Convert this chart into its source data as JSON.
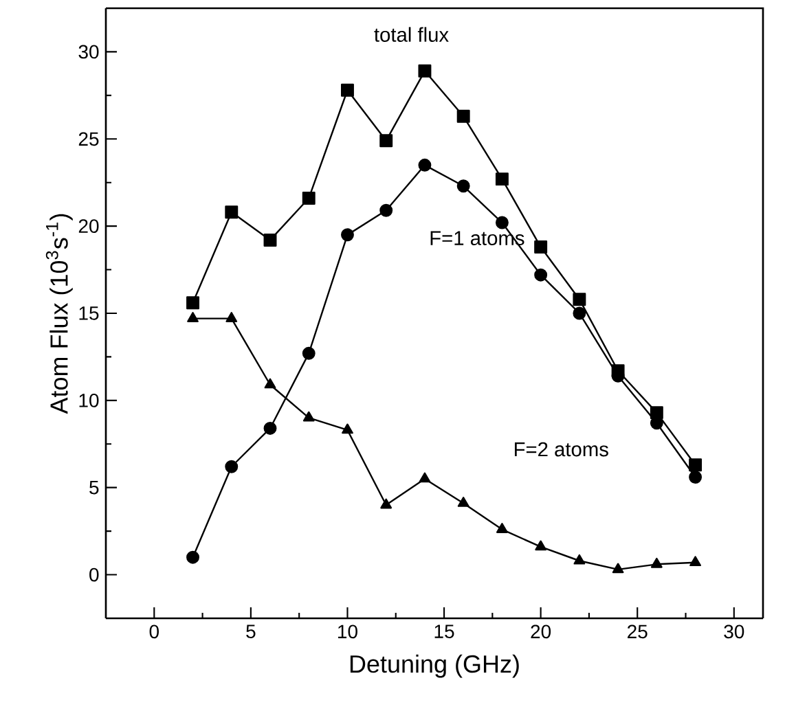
{
  "chart_data": {
    "type": "line",
    "xlabel": "Detuning (GHz)",
    "ylabel": "Atom Flux (10$^{3}$s$^{-1}$)",
    "x": [
      2,
      4,
      6,
      8,
      10,
      12,
      14,
      16,
      18,
      20,
      22,
      24,
      26,
      28
    ],
    "series": [
      {
        "color": "#000000",
        "marker": "square",
        "values": [
          15.6,
          20.8,
          19.2,
          21.6,
          27.8,
          24.9,
          28.9,
          26.3,
          22.7,
          18.8,
          15.8,
          11.7,
          9.3,
          6.3
        ]
      },
      {
        "color": "#000000",
        "marker": "circle",
        "values": [
          1.0,
          6.2,
          8.4,
          12.7,
          19.5,
          20.9,
          23.5,
          22.3,
          20.2,
          17.2,
          15.0,
          11.4,
          8.7,
          5.6
        ]
      },
      {
        "color": "#000000",
        "marker": "triangle",
        "values": [
          14.7,
          14.7,
          10.9,
          9.0,
          8.3,
          4.0,
          5.5,
          4.1,
          2.6,
          1.6,
          0.8,
          0.3,
          0.6,
          0.7
        ]
      }
    ],
    "annotations": [
      "total flux",
      "F=1 atoms",
      "F=2 atoms"
    ],
    "xlim": [
      -2.5,
      31.5
    ],
    "ylim": [
      -2.5,
      32.5
    ],
    "xticks": [
      0,
      5,
      10,
      15,
      20,
      25,
      30
    ],
    "yticks": [
      0,
      5,
      10,
      15,
      20,
      25,
      30
    ],
    "grid": false,
    "line_style": "solid"
  }
}
